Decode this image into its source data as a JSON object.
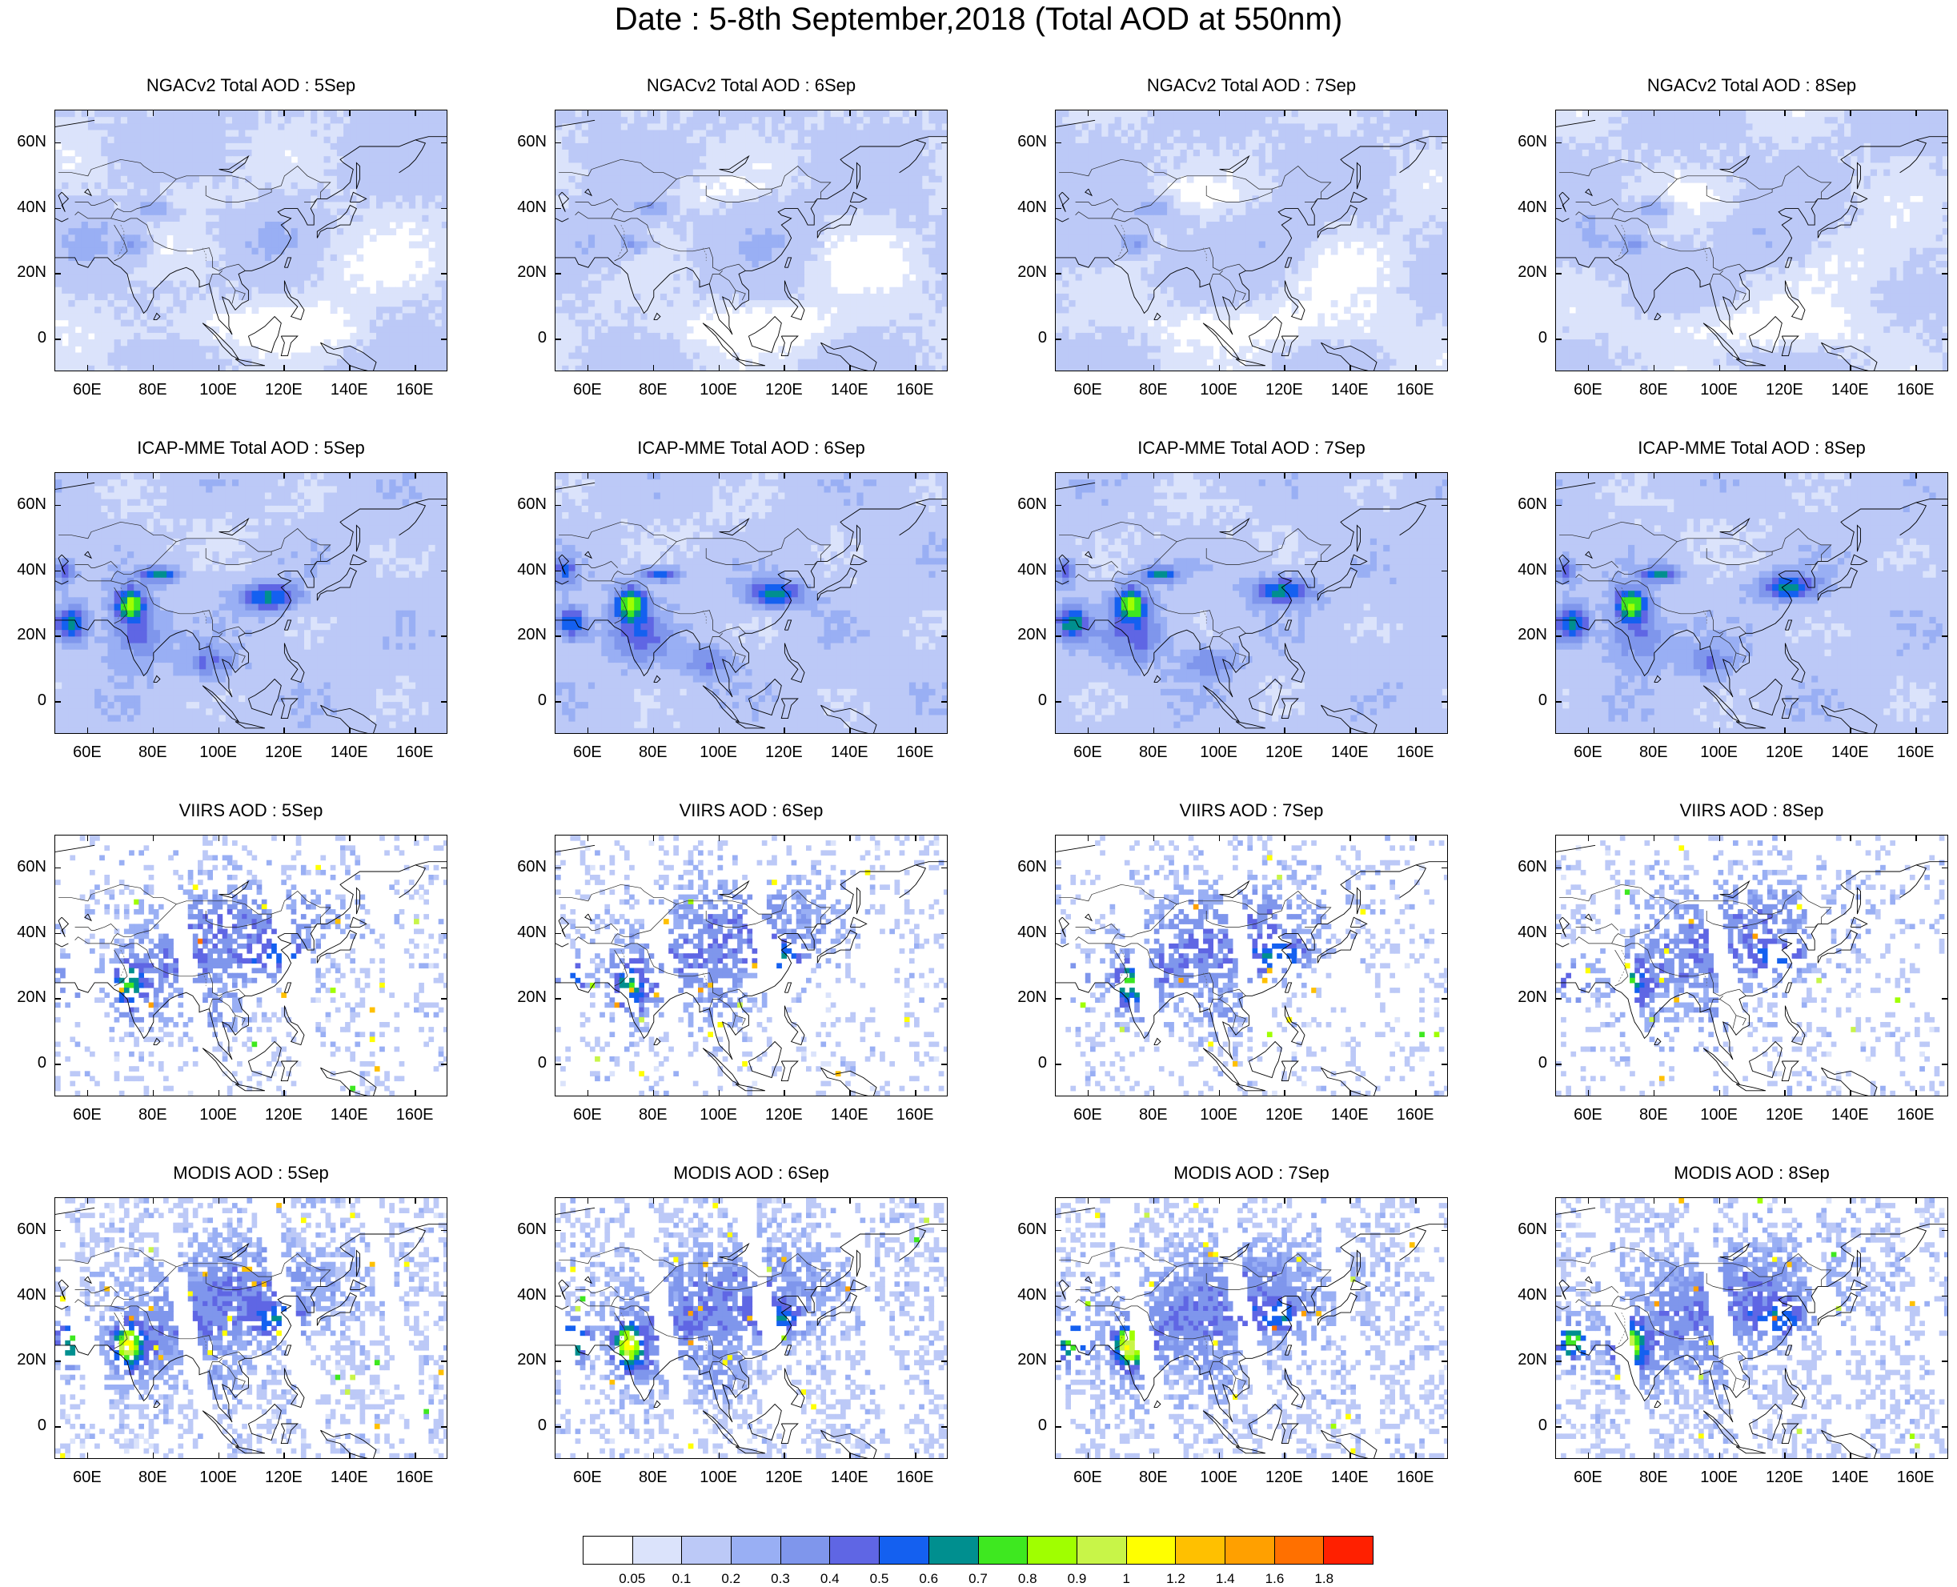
{
  "title": "Date : 5-8th September,2018 (Total AOD at 550nm)",
  "panels": [
    {
      "title": "NGACv2 Total AOD : 5Sep",
      "kind": "model"
    },
    {
      "title": "NGACv2 Total AOD : 6Sep",
      "kind": "model"
    },
    {
      "title": "NGACv2 Total AOD : 7Sep",
      "kind": "model"
    },
    {
      "title": "NGACv2 Total AOD : 8Sep",
      "kind": "model"
    },
    {
      "title": "ICAP-MME Total AOD : 5Sep",
      "kind": "ensemble"
    },
    {
      "title": "ICAP-MME Total AOD : 6Sep",
      "kind": "ensemble"
    },
    {
      "title": "ICAP-MME Total AOD : 7Sep",
      "kind": "ensemble"
    },
    {
      "title": "ICAP-MME Total AOD : 8Sep",
      "kind": "ensemble"
    },
    {
      "title": "VIIRS AOD : 5Sep",
      "kind": "satellite-sparse"
    },
    {
      "title": "VIIRS AOD : 6Sep",
      "kind": "satellite-sparse"
    },
    {
      "title": "VIIRS AOD : 7Sep",
      "kind": "satellite-sparse"
    },
    {
      "title": "VIIRS AOD : 8Sep",
      "kind": "satellite-sparse"
    },
    {
      "title": "MODIS AOD : 5Sep",
      "kind": "satellite"
    },
    {
      "title": "MODIS AOD : 6Sep",
      "kind": "satellite"
    },
    {
      "title": "MODIS AOD : 7Sep",
      "kind": "satellite"
    },
    {
      "title": "MODIS AOD : 8Sep",
      "kind": "satellite"
    }
  ],
  "lon_ticks": [
    "60E",
    "80E",
    "100E",
    "120E",
    "140E",
    "160E"
  ],
  "lat_ticks": [
    "60N",
    "40N",
    "20N",
    "0"
  ],
  "map_extent": {
    "lon": [
      50,
      170
    ],
    "lat": [
      -10,
      70
    ]
  },
  "colorbar": {
    "labels": [
      "0.05",
      "0.1",
      "0.2",
      "0.3",
      "0.4",
      "0.5",
      "0.6",
      "0.7",
      "0.8",
      "0.9",
      "1",
      "1.2",
      "1.4",
      "1.6",
      "1.8"
    ],
    "colors": [
      "#ffffff",
      "#dbe3fb",
      "#bcc9f7",
      "#99aff4",
      "#7f96ec",
      "#5f66e4",
      "#1460f0",
      "#008f8f",
      "#3ee820",
      "#a0ff00",
      "#c8f548",
      "#ffff00",
      "#ffc000",
      "#ffa000",
      "#ff7000",
      "#ff2000"
    ]
  }
}
